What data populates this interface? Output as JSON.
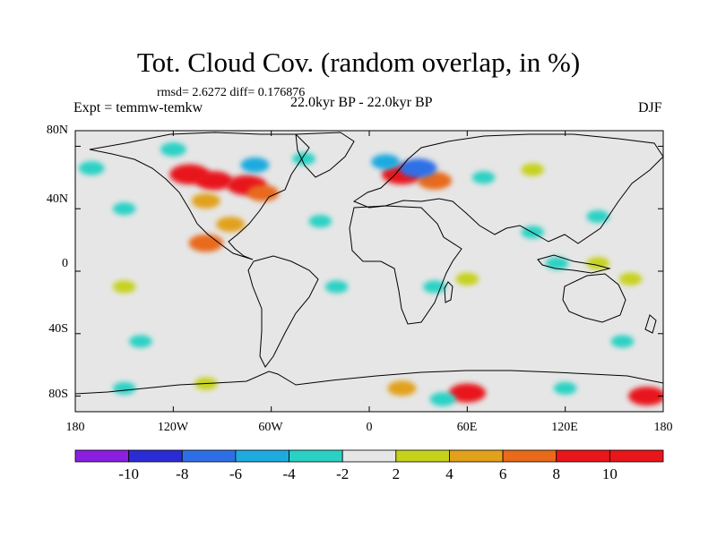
{
  "title": "Tot. Cloud Cov. (random overlap, in %)",
  "stats_line": "rmsd= 2.6272  diff= 0.176876",
  "left_label": "Expt = temmw-temkw",
  "center_label": "22.0kyr BP - 22.0kyr BP",
  "right_label": "DJF",
  "y_axis_labels": [
    "80N",
    "40N",
    "0",
    "40S",
    "80S"
  ],
  "x_axis_labels": [
    "180",
    "120W",
    "60W",
    "0",
    "60E",
    "120E",
    "180"
  ],
  "colorbar": {
    "tick_labels": [
      "-10",
      "-8",
      "-6",
      "-4",
      "-2",
      "2",
      "4",
      "6",
      "8",
      "10"
    ],
    "colors": [
      "#8a1fe0",
      "#2b2bd6",
      "#2f6fe6",
      "#1faadf",
      "#2ad1c4",
      "#e6e6e6",
      "#c6d21a",
      "#e2a11a",
      "#e86a1a",
      "#e8161a"
    ]
  },
  "chart_data": {
    "type": "heatmap",
    "title": "Tot. Cloud Cov. (random overlap, in %)",
    "xlim": [
      -180,
      180
    ],
    "ylim": [
      -90,
      90
    ],
    "levels": [
      -10,
      -8,
      -6,
      -4,
      -2,
      2,
      4,
      6,
      8,
      10
    ],
    "background_level": "between -2 and 2",
    "anomaly_patches": [
      {
        "lon": -110,
        "lat": 62,
        "value": 9
      },
      {
        "lon": -95,
        "lat": 58,
        "value": 8
      },
      {
        "lon": -75,
        "lat": 55,
        "value": 9
      },
      {
        "lon": -65,
        "lat": 50,
        "value": 6
      },
      {
        "lon": -100,
        "lat": 45,
        "value": 5
      },
      {
        "lon": -85,
        "lat": 30,
        "value": 5
      },
      {
        "lon": -100,
        "lat": 18,
        "value": 7
      },
      {
        "lon": -70,
        "lat": 68,
        "value": -5
      },
      {
        "lon": -120,
        "lat": 78,
        "value": -4
      },
      {
        "lon": -40,
        "lat": 72,
        "value": -3
      },
      {
        "lon": -170,
        "lat": 66,
        "value": -4
      },
      {
        "lon": -150,
        "lat": 40,
        "value": -3
      },
      {
        "lon": 20,
        "lat": 62,
        "value": 9
      },
      {
        "lon": 40,
        "lat": 58,
        "value": 7
      },
      {
        "lon": 30,
        "lat": 66,
        "value": -8
      },
      {
        "lon": 10,
        "lat": 70,
        "value": -5
      },
      {
        "lon": 70,
        "lat": 60,
        "value": -3
      },
      {
        "lon": 100,
        "lat": 65,
        "value": 3
      },
      {
        "lon": -30,
        "lat": 32,
        "value": -3
      },
      {
        "lon": 140,
        "lat": 35,
        "value": -3
      },
      {
        "lon": 100,
        "lat": 25,
        "value": -3
      },
      {
        "lon": 140,
        "lat": 5,
        "value": 3
      },
      {
        "lon": 115,
        "lat": 5,
        "value": -3
      },
      {
        "lon": 160,
        "lat": -5,
        "value": 3
      },
      {
        "lon": -150,
        "lat": -10,
        "value": 3
      },
      {
        "lon": 60,
        "lat": -5,
        "value": 3
      },
      {
        "lon": 40,
        "lat": -10,
        "value": -3
      },
      {
        "lon": -20,
        "lat": -10,
        "value": -3
      },
      {
        "lon": -140,
        "lat": -45,
        "value": -3
      },
      {
        "lon": 155,
        "lat": -45,
        "value": -3
      },
      {
        "lon": -150,
        "lat": -75,
        "value": -3
      },
      {
        "lon": 20,
        "lat": -75,
        "value": 5
      },
      {
        "lon": 60,
        "lat": -78,
        "value": 8
      },
      {
        "lon": 45,
        "lat": -82,
        "value": -4
      },
      {
        "lon": 120,
        "lat": -75,
        "value": -3
      },
      {
        "lon": 170,
        "lat": -80,
        "value": 8
      },
      {
        "lon": -100,
        "lat": -72,
        "value": 3
      }
    ]
  }
}
